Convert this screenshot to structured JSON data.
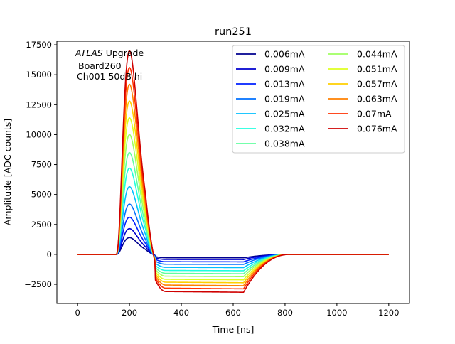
{
  "chart_data": {
    "type": "line",
    "title": "run251",
    "xlabel": "Time [ns]",
    "ylabel": "Amplitude [ADC counts]",
    "xlim": [
      -80,
      1280
    ],
    "ylim": [
      -4100,
      17800
    ],
    "xticks": [
      0,
      200,
      400,
      600,
      800,
      1000,
      1200
    ],
    "yticks": [
      -2500,
      0,
      2500,
      5000,
      7500,
      10000,
      12500,
      15000,
      17500
    ],
    "grid": false,
    "legend": {
      "placement": "top-right",
      "columns": 2
    },
    "annotation": {
      "atlas": "ATLAS",
      "upgrade": " Upgrade",
      "line2": "Board260",
      "line3": "Ch001 50dB hi"
    },
    "pulse_shape": {
      "time_ns": [
        0,
        140,
        150,
        160,
        170,
        180,
        190,
        200,
        210,
        220,
        230,
        240,
        250,
        260,
        270,
        280,
        290,
        300,
        310,
        320,
        340,
        360,
        400,
        450,
        500,
        550,
        600,
        630,
        645,
        660,
        680,
        700,
        720,
        740,
        760,
        780,
        800,
        830,
        860,
        900,
        1000,
        1100,
        1200
      ],
      "comment_free_note": ""
    },
    "series": [
      {
        "name": "0.006mA",
        "color": "#00008f",
        "peak": 1400,
        "undershoot": -280
      },
      {
        "name": "0.009mA",
        "color": "#0000cf",
        "peak": 2150,
        "undershoot": -420
      },
      {
        "name": "0.013mA",
        "color": "#0020ff",
        "peak": 3100,
        "undershoot": -610
      },
      {
        "name": "0.019mA",
        "color": "#0070ff",
        "peak": 4200,
        "undershoot": -820
      },
      {
        "name": "0.025mA",
        "color": "#00bfff",
        "peak": 5650,
        "undershoot": -1080
      },
      {
        "name": "0.032mA",
        "color": "#1fffdf",
        "peak": 7200,
        "undershoot": -1340
      },
      {
        "name": "0.038mA",
        "color": "#60ff9f",
        "peak": 8500,
        "undershoot": -1580
      },
      {
        "name": "0.044mA",
        "color": "#9fff60",
        "peak": 10000,
        "undershoot": -1820
      },
      {
        "name": "0.051mA",
        "color": "#dfff20",
        "peak": 11400,
        "undershoot": -2080
      },
      {
        "name": "0.057mA",
        "color": "#ffcf00",
        "peak": 12800,
        "undershoot": -2320
      },
      {
        "name": "0.063mA",
        "color": "#ff8000",
        "peak": 14200,
        "undershoot": -2560
      },
      {
        "name": "0.07mA",
        "color": "#ff3000",
        "peak": 15600,
        "undershoot": -2820
      },
      {
        "name": "0.076mA",
        "color": "#cf0000",
        "peak": 17000,
        "undershoot": -3100
      }
    ]
  }
}
